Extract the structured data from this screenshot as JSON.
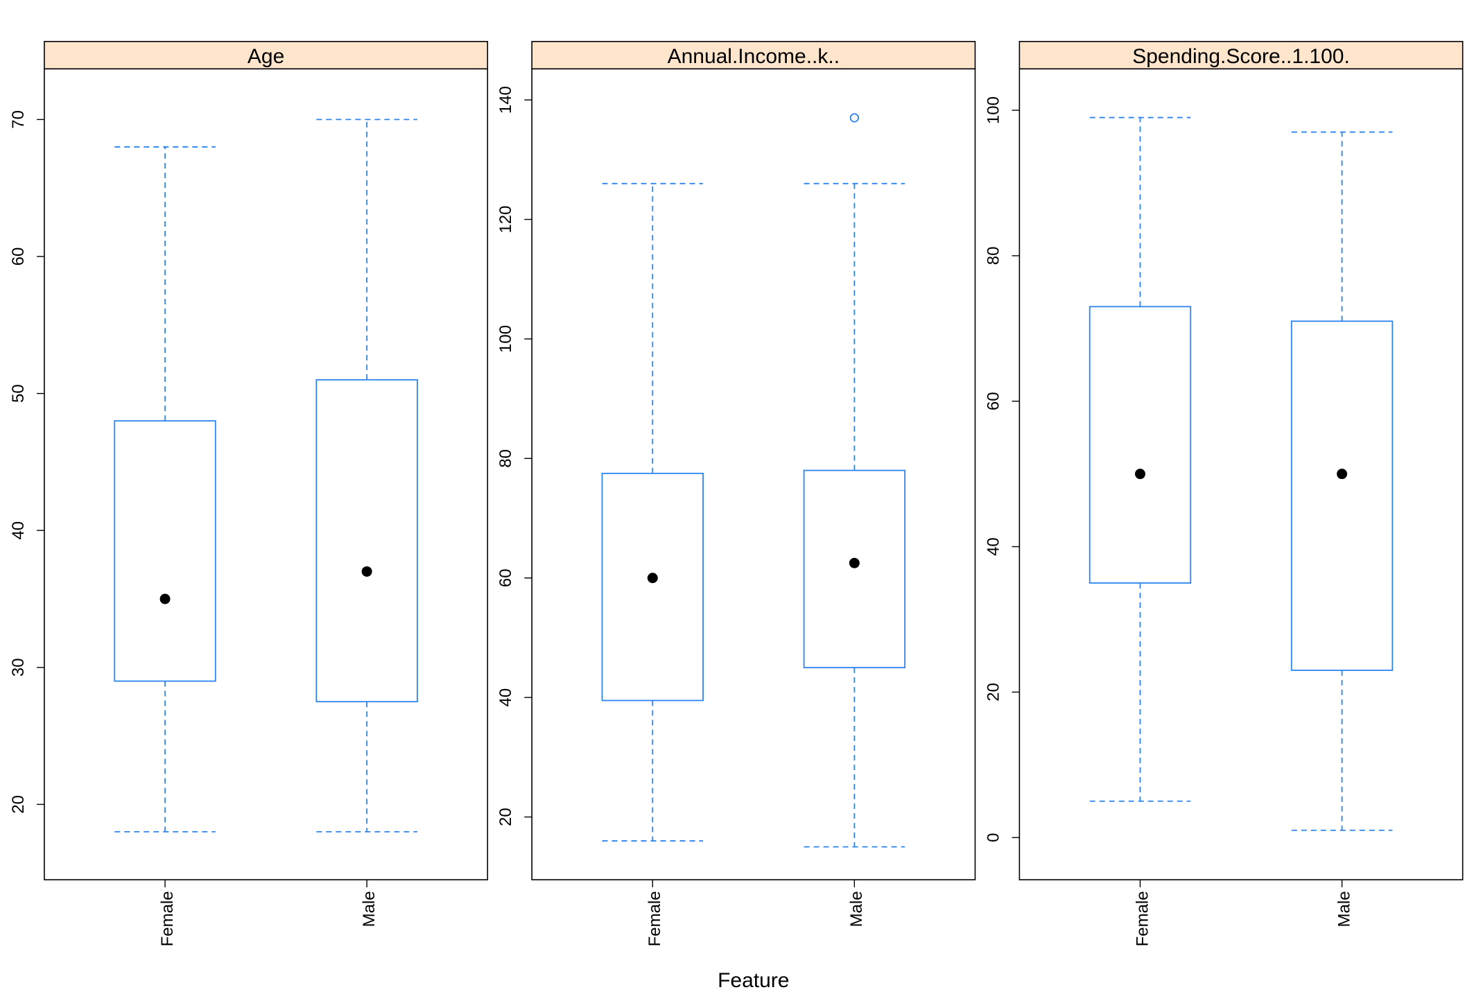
{
  "chart_data": {
    "type": "box",
    "xlabel": "Feature",
    "ylabel": "",
    "categories": [
      "Female",
      "Male"
    ],
    "colors": {
      "box": "#2b84f0",
      "median_dot": "#000000",
      "strip_bg": "#ffe5cc",
      "frame": "#000000"
    },
    "panels": [
      {
        "title": "Age",
        "ylim": [
          14.5,
          73.7
        ],
        "ticks": [
          20,
          30,
          40,
          50,
          60,
          70
        ],
        "tick_labels": [
          "20",
          "30",
          "40",
          "50",
          "60",
          "70"
        ],
        "boxes": [
          {
            "category": "Female",
            "min": 18,
            "q1": 29,
            "median": 35,
            "q3": 48,
            "max": 68,
            "outliers": []
          },
          {
            "category": "Male",
            "min": 18,
            "q1": 27.5,
            "median": 37,
            "q3": 51,
            "max": 70,
            "outliers": []
          }
        ]
      },
      {
        "title": "Annual.Income..k..",
        "ylim": [
          9.5,
          145.2
        ],
        "ticks": [
          20,
          40,
          60,
          80,
          100,
          120,
          140
        ],
        "tick_labels": [
          "20",
          "40",
          "60",
          "80",
          "100",
          "120",
          "140"
        ],
        "boxes": [
          {
            "category": "Female",
            "min": 16,
            "q1": 39.5,
            "median": 60,
            "q3": 77.5,
            "max": 126,
            "outliers": []
          },
          {
            "category": "Male",
            "min": 15,
            "q1": 45,
            "median": 62.5,
            "q3": 78,
            "max": 126,
            "outliers": [
              137
            ]
          }
        ]
      },
      {
        "title": "Spending.Score..1.100.",
        "ylim": [
          -5.8,
          105.7
        ],
        "ticks": [
          0,
          20,
          40,
          60,
          80,
          100
        ],
        "tick_labels": [
          "0",
          "20",
          "40",
          "60",
          "80",
          "100"
        ],
        "boxes": [
          {
            "category": "Female",
            "min": 5,
            "q1": 35,
            "median": 50,
            "q3": 73,
            "max": 99,
            "outliers": []
          },
          {
            "category": "Male",
            "min": 1,
            "q1": 23,
            "median": 50,
            "q3": 71,
            "max": 97,
            "outliers": []
          }
        ]
      }
    ]
  }
}
